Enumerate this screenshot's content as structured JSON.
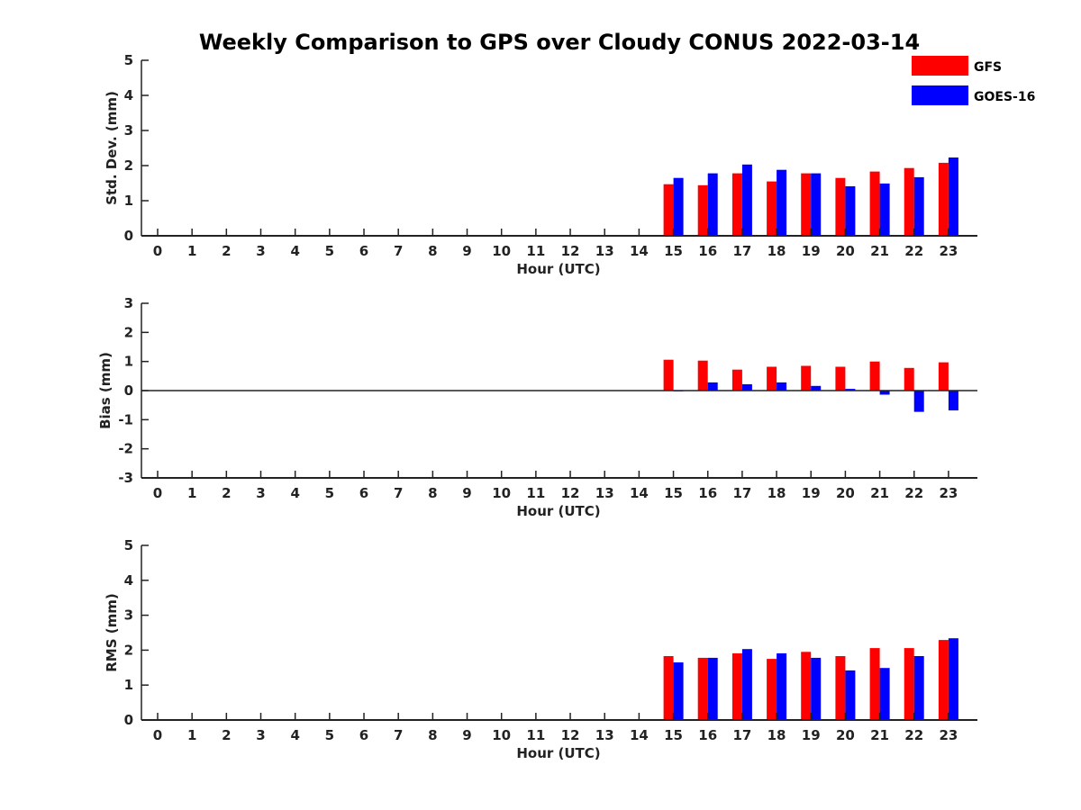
{
  "title": "Weekly Comparison to GPS over Cloudy CONUS 2022-03-14",
  "colors": {
    "GFS": "#ff0000",
    "GOES-16": "#0000ff"
  },
  "legend": {
    "placement": "top-right",
    "items": [
      "GFS",
      "GOES-16"
    ]
  },
  "chart_data": [
    {
      "type": "bar",
      "title": "Weekly Comparison to GPS over Cloudy CONUS 2022-03-14",
      "xlabel": "Hour (UTC)",
      "ylabel": "Std. Dev. (mm)",
      "categories": [
        "0",
        "1",
        "2",
        "3",
        "4",
        "5",
        "6",
        "7",
        "8",
        "9",
        "10",
        "11",
        "12",
        "13",
        "14",
        "15",
        "16",
        "17",
        "18",
        "19",
        "20",
        "21",
        "22",
        "23"
      ],
      "ylim": [
        0,
        5
      ],
      "yticks": [
        "0",
        "1",
        "2",
        "3",
        "4",
        "5"
      ],
      "grid": false,
      "series": [
        {
          "name": "GFS",
          "values": [
            null,
            null,
            null,
            null,
            null,
            null,
            null,
            null,
            null,
            null,
            null,
            null,
            null,
            null,
            null,
            1.47,
            1.44,
            1.78,
            1.55,
            1.78,
            1.65,
            1.83,
            1.93,
            2.08
          ]
        },
        {
          "name": "GOES-16",
          "values": [
            null,
            null,
            null,
            null,
            null,
            null,
            null,
            null,
            null,
            null,
            null,
            null,
            null,
            null,
            null,
            1.65,
            1.78,
            2.03,
            1.88,
            1.78,
            1.41,
            1.49,
            1.67,
            2.23
          ]
        }
      ]
    },
    {
      "type": "bar",
      "xlabel": "Hour (UTC)",
      "ylabel": "Bias (mm)",
      "categories": [
        "0",
        "1",
        "2",
        "3",
        "4",
        "5",
        "6",
        "7",
        "8",
        "9",
        "10",
        "11",
        "12",
        "13",
        "14",
        "15",
        "16",
        "17",
        "18",
        "19",
        "20",
        "21",
        "22",
        "23"
      ],
      "ylim": [
        -3,
        3
      ],
      "yticks": [
        "-3",
        "-2",
        "-1",
        "0",
        "1",
        "2",
        "3"
      ],
      "grid": false,
      "series": [
        {
          "name": "GFS",
          "values": [
            null,
            null,
            null,
            null,
            null,
            null,
            null,
            null,
            null,
            null,
            null,
            null,
            null,
            null,
            null,
            1.06,
            1.03,
            0.72,
            0.82,
            0.85,
            0.82,
            1.0,
            0.78,
            0.97
          ]
        },
        {
          "name": "GOES-16",
          "values": [
            null,
            null,
            null,
            null,
            null,
            null,
            null,
            null,
            null,
            null,
            null,
            null,
            null,
            null,
            null,
            0.0,
            0.28,
            0.22,
            0.28,
            0.16,
            0.06,
            -0.14,
            -0.73,
            -0.68
          ]
        }
      ]
    },
    {
      "type": "bar",
      "xlabel": "Hour (UTC)",
      "ylabel": "RMS (mm)",
      "categories": [
        "0",
        "1",
        "2",
        "3",
        "4",
        "5",
        "6",
        "7",
        "8",
        "9",
        "10",
        "11",
        "12",
        "13",
        "14",
        "15",
        "16",
        "17",
        "18",
        "19",
        "20",
        "21",
        "22",
        "23"
      ],
      "ylim": [
        0,
        5
      ],
      "yticks": [
        "0",
        "1",
        "2",
        "3",
        "4",
        "5"
      ],
      "grid": false,
      "series": [
        {
          "name": "GFS",
          "values": [
            null,
            null,
            null,
            null,
            null,
            null,
            null,
            null,
            null,
            null,
            null,
            null,
            null,
            null,
            null,
            1.83,
            1.78,
            1.91,
            1.75,
            1.95,
            1.83,
            2.06,
            2.06,
            2.29
          ]
        },
        {
          "name": "GOES-16",
          "values": [
            null,
            null,
            null,
            null,
            null,
            null,
            null,
            null,
            null,
            null,
            null,
            null,
            null,
            null,
            null,
            1.65,
            1.78,
            2.03,
            1.91,
            1.78,
            1.42,
            1.49,
            1.83,
            2.34
          ]
        }
      ]
    }
  ]
}
